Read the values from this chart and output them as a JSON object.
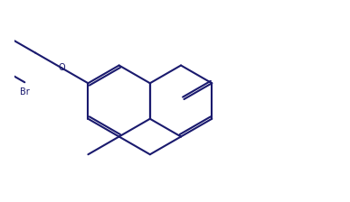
{
  "line_color": "#1a1a6e",
  "bg_color": "#ffffff",
  "linewidth": 1.5,
  "figsize": [
    3.87,
    2.24
  ],
  "dpi": 100,
  "xlim": [
    -3.8,
    5.2
  ],
  "ylim": [
    -2.8,
    2.8
  ]
}
